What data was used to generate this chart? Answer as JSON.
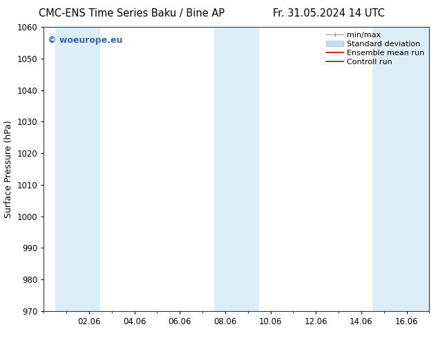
{
  "title_left": "CMC-ENS Time Series Baku / Bine AP",
  "title_right": "Fr. 31.05.2024 14 UTC",
  "ylabel": "Surface Pressure (hPa)",
  "ylim": [
    970,
    1060
  ],
  "yticks": [
    970,
    980,
    990,
    1000,
    1010,
    1020,
    1030,
    1040,
    1050,
    1060
  ],
  "xlim": [
    0,
    17
  ],
  "xtick_labels": [
    "02.06",
    "04.06",
    "06.06",
    "08.06",
    "10.06",
    "12.06",
    "14.06",
    "16.06"
  ],
  "xtick_positions": [
    2,
    4,
    6,
    8,
    10,
    12,
    14,
    16
  ],
  "shaded_bands": [
    {
      "x_start": 0.5,
      "x_end": 2.5,
      "color": "#ddeef8"
    },
    {
      "x_start": 7.5,
      "x_end": 9.5,
      "color": "#ddeef8"
    },
    {
      "x_start": 14.5,
      "x_end": 17.0,
      "color": "#ddeef8"
    }
  ],
  "watermark": "© woeurope.eu",
  "watermark_color": "#3366bb",
  "legend_items": [
    {
      "label": "min/max",
      "color": "#999999",
      "type": "errorbar"
    },
    {
      "label": "Standard deviation",
      "color": "#c8dce8",
      "type": "band"
    },
    {
      "label": "Ensemble mean run",
      "color": "#cc0000",
      "type": "line"
    },
    {
      "label": "Controll run",
      "color": "#006600",
      "type": "line"
    }
  ],
  "bg_color": "#ffffff",
  "plot_bg_color": "#ffffff",
  "title_fontsize": 10.5,
  "tick_fontsize": 8.5,
  "ylabel_fontsize": 9,
  "legend_fontsize": 8,
  "watermark_fontsize": 9
}
